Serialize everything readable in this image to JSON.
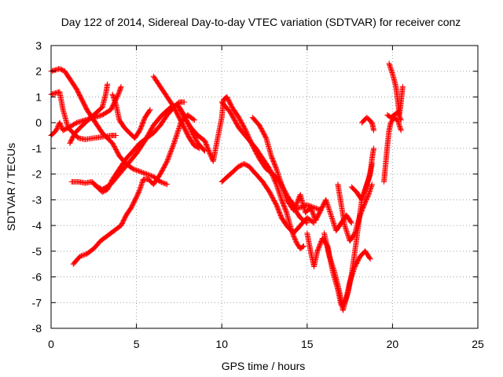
{
  "chart_data": {
    "type": "scatter",
    "title": "Day 122 of 2014, Sidereal Day-to-day VTEC variation (SDTVAR) for receiver conz",
    "xlabel": "GPS time / hours",
    "ylabel": "SDTVAR / TECUs",
    "xlim": [
      0,
      25
    ],
    "ylim": [
      -8,
      3
    ],
    "xticks": [
      "0",
      "5",
      "10",
      "15",
      "20",
      "25"
    ],
    "yticks": [
      "-8",
      "-7",
      "-6",
      "-5",
      "-4",
      "-3",
      "-2",
      "-1",
      "0",
      "1",
      "2",
      "3"
    ],
    "grid": true,
    "legend": "none",
    "marker": "+",
    "color": "#ff0000",
    "tracks": [
      [
        [
          0.0,
          2.0
        ],
        [
          0.5,
          2.1
        ],
        [
          0.8,
          2.0
        ],
        [
          1.0,
          1.8
        ],
        [
          1.5,
          1.3
        ],
        [
          1.8,
          0.9
        ],
        [
          2.1,
          0.5
        ],
        [
          2.4,
          0.2
        ],
        [
          2.7,
          -0.1
        ],
        [
          3.0,
          -0.4
        ],
        [
          3.3,
          -0.6
        ],
        [
          3.6,
          -0.8
        ],
        [
          4.0,
          -1.3
        ],
        [
          4.4,
          -1.6
        ],
        [
          4.8,
          -1.8
        ],
        [
          5.2,
          -1.9
        ],
        [
          5.6,
          -2.0
        ],
        [
          6.0,
          -2.1
        ],
        [
          6.4,
          -2.3
        ],
        [
          6.8,
          -2.4
        ]
      ],
      [
        [
          0.0,
          1.1
        ],
        [
          0.5,
          1.2
        ],
        [
          0.7,
          0.5
        ],
        [
          1.0,
          -0.2
        ],
        [
          1.3,
          -0.4
        ],
        [
          1.6,
          -0.6
        ],
        [
          2.0,
          -0.65
        ],
        [
          2.5,
          -0.6
        ],
        [
          3.0,
          -0.55
        ],
        [
          3.5,
          -0.5
        ],
        [
          3.8,
          -0.5
        ]
      ],
      [
        [
          0.0,
          -0.5
        ],
        [
          0.3,
          -0.3
        ],
        [
          0.5,
          0.0
        ],
        [
          0.7,
          -0.3
        ],
        [
          1.0,
          -0.2
        ],
        [
          1.5,
          0.0
        ],
        [
          2.0,
          0.1
        ],
        [
          2.5,
          0.2
        ],
        [
          3.0,
          0.3
        ],
        [
          3.5,
          0.5
        ],
        [
          3.8,
          0.9
        ],
        [
          4.0,
          1.2
        ],
        [
          4.1,
          1.4
        ]
      ],
      [
        [
          1.1,
          -0.8
        ],
        [
          1.4,
          -0.4
        ],
        [
          1.7,
          -0.2
        ],
        [
          2.0,
          0.0
        ],
        [
          2.5,
          0.3
        ],
        [
          3.0,
          0.6
        ],
        [
          3.2,
          1.1
        ],
        [
          3.3,
          1.5
        ]
      ],
      [
        [
          3.6,
          1.1
        ],
        [
          3.8,
          0.7
        ],
        [
          4.0,
          0.1
        ],
        [
          4.3,
          -0.2
        ],
        [
          4.6,
          -0.4
        ],
        [
          4.9,
          -0.6
        ],
        [
          5.2,
          -0.3
        ],
        [
          5.5,
          0.2
        ],
        [
          5.8,
          0.5
        ]
      ],
      [
        [
          1.2,
          -2.3
        ],
        [
          1.6,
          -2.3
        ],
        [
          2.0,
          -2.35
        ],
        [
          2.4,
          -2.3
        ],
        [
          2.7,
          -2.5
        ],
        [
          3.0,
          -2.7
        ],
        [
          3.3,
          -2.6
        ],
        [
          3.6,
          -2.2
        ],
        [
          4.0,
          -1.8
        ],
        [
          4.4,
          -1.4
        ],
        [
          4.8,
          -1.1
        ],
        [
          5.2,
          -0.8
        ],
        [
          5.6,
          -0.6
        ],
        [
          6.0,
          -0.4
        ],
        [
          6.4,
          -0.1
        ],
        [
          6.8,
          0.3
        ],
        [
          7.2,
          0.6
        ],
        [
          7.5,
          0.8
        ],
        [
          7.8,
          0.8
        ]
      ],
      [
        [
          2.5,
          -2.4
        ],
        [
          3.0,
          -2.6
        ],
        [
          3.5,
          -2.4
        ],
        [
          4.0,
          -2.0
        ],
        [
          4.5,
          -1.6
        ],
        [
          5.0,
          -1.2
        ],
        [
          5.5,
          -0.7
        ],
        [
          6.0,
          -0.1
        ],
        [
          6.5,
          0.3
        ],
        [
          7.0,
          0.6
        ],
        [
          7.4,
          0.7
        ],
        [
          7.8,
          0.3
        ],
        [
          8.2,
          -0.3
        ],
        [
          8.6,
          -0.8
        ],
        [
          9.0,
          -1.1
        ]
      ],
      [
        [
          1.3,
          -5.5
        ],
        [
          1.7,
          -5.2
        ],
        [
          2.1,
          -5.1
        ],
        [
          2.5,
          -4.9
        ],
        [
          2.9,
          -4.6
        ],
        [
          3.3,
          -4.4
        ],
        [
          3.7,
          -4.2
        ],
        [
          4.1,
          -4.0
        ],
        [
          4.4,
          -3.6
        ],
        [
          4.7,
          -3.3
        ],
        [
          5.0,
          -2.9
        ],
        [
          5.2,
          -2.6
        ],
        [
          5.4,
          -2.2
        ],
        [
          5.7,
          -2.2
        ],
        [
          6.0,
          -2.4
        ],
        [
          6.4,
          -2.0
        ],
        [
          6.8,
          -1.5
        ],
        [
          7.2,
          -0.8
        ],
        [
          7.6,
          0.0
        ],
        [
          8.0,
          0.3
        ],
        [
          8.4,
          0.1
        ]
      ],
      [
        [
          6.0,
          1.8
        ],
        [
          6.4,
          1.4
        ],
        [
          6.8,
          1.0
        ],
        [
          7.2,
          0.6
        ],
        [
          7.5,
          0.2
        ],
        [
          7.8,
          -0.2
        ],
        [
          8.1,
          -0.6
        ],
        [
          8.4,
          -0.9
        ],
        [
          8.7,
          -1.0
        ]
      ],
      [
        [
          7.5,
          0.6
        ],
        [
          7.8,
          0.2
        ],
        [
          8.2,
          -0.2
        ],
        [
          8.6,
          -0.5
        ],
        [
          9.0,
          -0.7
        ],
        [
          9.3,
          -1.2
        ],
        [
          9.5,
          -1.5
        ],
        [
          9.7,
          -0.8
        ],
        [
          10.0,
          0.2
        ],
        [
          10.1,
          0.9
        ],
        [
          10.3,
          1.0
        ],
        [
          10.6,
          0.6
        ],
        [
          11.0,
          0.2
        ],
        [
          11.4,
          -0.3
        ],
        [
          11.8,
          -0.9
        ],
        [
          12.2,
          -1.4
        ],
        [
          12.6,
          -1.8
        ],
        [
          13.0,
          -2.0
        ],
        [
          13.4,
          -2.3
        ],
        [
          13.8,
          -2.8
        ],
        [
          14.2,
          -3.3
        ],
        [
          14.6,
          -3.7
        ],
        [
          15.0,
          -3.9
        ]
      ],
      [
        [
          10.0,
          0.8
        ],
        [
          10.5,
          0.4
        ],
        [
          11.0,
          -0.2
        ],
        [
          11.5,
          -0.6
        ],
        [
          12.0,
          -1.0
        ],
        [
          12.4,
          -1.4
        ],
        [
          12.8,
          -1.8
        ],
        [
          13.2,
          -2.4
        ],
        [
          13.5,
          -3.0
        ],
        [
          13.8,
          -3.5
        ],
        [
          14.0,
          -4.0
        ],
        [
          14.2,
          -4.4
        ],
        [
          14.4,
          -4.7
        ],
        [
          14.6,
          -4.9
        ],
        [
          14.8,
          -4.8
        ]
      ],
      [
        [
          10.0,
          -2.3
        ],
        [
          10.5,
          -2.0
        ],
        [
          11.0,
          -1.7
        ],
        [
          11.3,
          -1.6
        ],
        [
          11.6,
          -1.7
        ],
        [
          12.0,
          -2.0
        ],
        [
          12.4,
          -2.3
        ],
        [
          12.8,
          -2.7
        ],
        [
          13.2,
          -3.2
        ],
        [
          13.5,
          -3.7
        ],
        [
          13.8,
          -4.0
        ],
        [
          14.2,
          -4.3
        ],
        [
          14.6,
          -4.0
        ],
        [
          15.0,
          -3.7
        ],
        [
          15.4,
          -3.9
        ]
      ],
      [
        [
          11.8,
          0.2
        ],
        [
          12.2,
          -0.1
        ],
        [
          12.6,
          -0.6
        ],
        [
          12.9,
          -1.3
        ],
        [
          13.2,
          -1.8
        ],
        [
          13.5,
          -2.4
        ],
        [
          13.8,
          -3.0
        ],
        [
          14.2,
          -3.4
        ],
        [
          14.6,
          -3.3
        ],
        [
          15.0,
          -3.2
        ],
        [
          15.4,
          -3.3
        ],
        [
          15.8,
          -3.4
        ]
      ],
      [
        [
          14.0,
          -3.0
        ],
        [
          14.3,
          -3.3
        ],
        [
          14.6,
          -2.8
        ],
        [
          14.9,
          -3.5
        ],
        [
          15.2,
          -3.3
        ],
        [
          15.5,
          -3.8
        ],
        [
          15.8,
          -3.4
        ],
        [
          16.1,
          -3.0
        ],
        [
          16.4,
          -3.6
        ],
        [
          16.7,
          -4.2
        ],
        [
          17.0,
          -3.9
        ],
        [
          17.3,
          -3.6
        ],
        [
          17.6,
          -3.9
        ]
      ],
      [
        [
          15.0,
          -4.3
        ],
        [
          15.2,
          -5.0
        ],
        [
          15.4,
          -5.6
        ],
        [
          15.6,
          -5.0
        ],
        [
          15.9,
          -4.5
        ],
        [
          16.2,
          -4.8
        ],
        [
          16.5,
          -5.8
        ],
        [
          16.8,
          -6.5
        ],
        [
          17.0,
          -7.1
        ],
        [
          17.2,
          -7.0
        ],
        [
          17.4,
          -6.6
        ],
        [
          17.6,
          -5.9
        ],
        [
          17.8,
          -5.0
        ],
        [
          18.0,
          -4.0
        ],
        [
          18.2,
          -3.0
        ],
        [
          18.4,
          -2.6
        ],
        [
          18.6,
          -2.2
        ],
        [
          18.8,
          -1.6
        ]
      ],
      [
        [
          16.0,
          -4.3
        ],
        [
          16.3,
          -5.2
        ],
        [
          16.6,
          -5.8
        ],
        [
          16.9,
          -6.6
        ],
        [
          17.1,
          -7.3
        ],
        [
          17.3,
          -6.8
        ],
        [
          17.5,
          -6.2
        ],
        [
          17.8,
          -5.6
        ],
        [
          18.1,
          -5.2
        ],
        [
          18.4,
          -5.0
        ],
        [
          18.7,
          -5.3
        ]
      ],
      [
        [
          16.8,
          -2.4
        ],
        [
          17.0,
          -3.2
        ],
        [
          17.2,
          -4.0
        ],
        [
          17.5,
          -4.6
        ],
        [
          17.8,
          -4.3
        ],
        [
          18.1,
          -3.6
        ],
        [
          18.4,
          -3.1
        ],
        [
          18.6,
          -2.8
        ],
        [
          18.8,
          -2.4
        ]
      ],
      [
        [
          17.6,
          -2.5
        ],
        [
          17.9,
          -2.7
        ],
        [
          18.2,
          -3.0
        ],
        [
          18.5,
          -2.4
        ],
        [
          18.7,
          -2.0
        ],
        [
          18.8,
          -1.4
        ],
        [
          18.9,
          -1.0
        ]
      ],
      [
        [
          18.2,
          0.0
        ],
        [
          18.5,
          0.2
        ],
        [
          18.8,
          0.0
        ],
        [
          18.9,
          -0.3
        ]
      ],
      [
        [
          19.5,
          -2.3
        ],
        [
          19.6,
          -1.6
        ],
        [
          19.7,
          -0.9
        ],
        [
          19.8,
          -0.3
        ],
        [
          19.9,
          0.0
        ],
        [
          20.1,
          0.2
        ],
        [
          20.3,
          0.1
        ],
        [
          20.5,
          -0.3
        ]
      ],
      [
        [
          19.8,
          2.3
        ],
        [
          20.0,
          1.9
        ],
        [
          20.2,
          1.4
        ],
        [
          20.3,
          0.9
        ],
        [
          20.4,
          0.3
        ],
        [
          20.5,
          0.8
        ],
        [
          20.6,
          1.4
        ]
      ],
      [
        [
          19.7,
          0.3
        ],
        [
          19.9,
          0.2
        ],
        [
          20.1,
          0.3
        ],
        [
          20.3,
          0.4
        ],
        [
          20.5,
          0.1
        ]
      ]
    ]
  }
}
